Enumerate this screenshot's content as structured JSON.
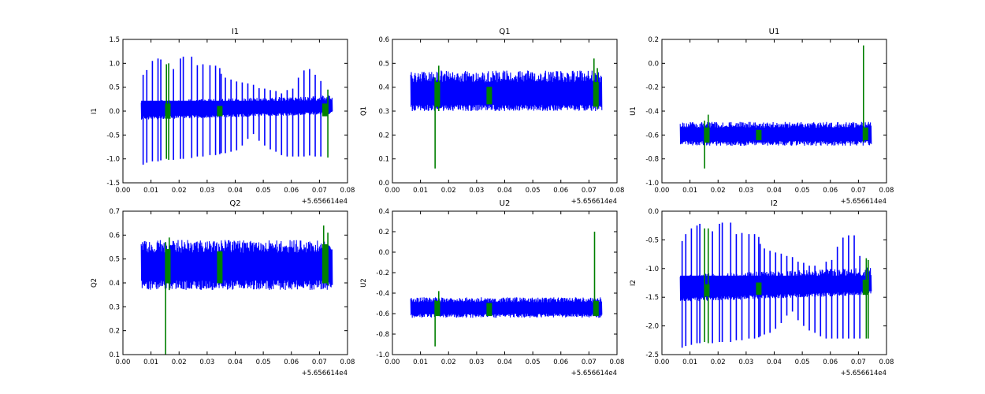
{
  "chart_data": [
    {
      "type": "line",
      "title": "I1",
      "xlabel": "",
      "ylabel": "I1",
      "xlim": [
        0.0,
        0.08
      ],
      "ylim": [
        -1.5,
        1.5
      ],
      "xticks": [
        "0.00",
        "0.01",
        "0.02",
        "0.03",
        "0.04",
        "0.05",
        "0.06",
        "0.07",
        "0.08"
      ],
      "yticks": [
        "-1.5",
        "-1.0",
        "-0.5",
        "0.0",
        "0.5",
        "1.0",
        "1.5"
      ],
      "x_offset_label": "+5.656614e4",
      "series": [
        {
          "color": "#0000ff",
          "x_range": [
            0.0065,
            0.0745
          ],
          "baseline": [
            -0.03,
            0.08
          ],
          "band": [
            -0.18,
            0.22
          ],
          "spikes": [
            [
              0.0072,
              0.76,
              -1.12
            ],
            [
              0.0085,
              0.86,
              -1.08
            ],
            [
              0.0105,
              1.05,
              -1.05
            ],
            [
              0.0125,
              1.1,
              -1.05
            ],
            [
              0.0135,
              1.08,
              -1.03
            ],
            [
              0.018,
              0.88,
              -1.02
            ],
            [
              0.0205,
              1.1,
              -1.0
            ],
            [
              0.0215,
              1.14,
              -1.0
            ],
            [
              0.0245,
              1.14,
              -0.98
            ],
            [
              0.0265,
              0.96,
              -0.95
            ],
            [
              0.0285,
              0.98,
              -0.95
            ],
            [
              0.031,
              0.96,
              -0.92
            ],
            [
              0.033,
              0.95,
              -0.92
            ],
            [
              0.0345,
              0.9,
              -0.9
            ],
            [
              0.035,
              0.78,
              -0.88
            ],
            [
              0.0365,
              0.7,
              -0.88
            ],
            [
              0.0385,
              0.66,
              -0.85
            ],
            [
              0.0405,
              0.62,
              -0.82
            ],
            [
              0.0425,
              0.6,
              -0.72
            ],
            [
              0.0445,
              0.58,
              -0.58
            ],
            [
              0.0465,
              0.55,
              -0.48
            ],
            [
              0.0485,
              0.48,
              -0.62
            ],
            [
              0.0505,
              0.47,
              -0.72
            ],
            [
              0.0525,
              0.44,
              -0.8
            ],
            [
              0.0545,
              0.42,
              -0.85
            ],
            [
              0.0565,
              0.37,
              -0.92
            ],
            [
              0.0585,
              0.44,
              -0.95
            ],
            [
              0.0605,
              0.47,
              -0.95
            ],
            [
              0.0625,
              0.7,
              -0.95
            ],
            [
              0.0645,
              0.85,
              -0.95
            ],
            [
              0.0665,
              0.88,
              -0.93
            ],
            [
              0.0685,
              0.76,
              -0.95
            ],
            [
              0.0705,
              0.63,
              -0.95
            ]
          ]
        },
        {
          "color": "#008000",
          "clusters": [
            [
              0.016,
              -0.15,
              0.15
            ],
            [
              0.0345,
              -0.1,
              0.1
            ],
            [
              0.072,
              -0.1,
              0.15
            ]
          ],
          "spikes": [
            [
              0.0155,
              0.98,
              -1.0
            ],
            [
              0.0163,
              1.0,
              -1.02
            ],
            [
              0.073,
              0.45,
              -0.97
            ]
          ]
        }
      ]
    },
    {
      "type": "line",
      "title": "Q1",
      "xlabel": "",
      "ylabel": "Q1",
      "xlim": [
        0.0,
        0.08
      ],
      "ylim": [
        0.0,
        0.6
      ],
      "xticks": [
        "0.00",
        "0.01",
        "0.02",
        "0.03",
        "0.04",
        "0.05",
        "0.06",
        "0.07",
        "0.08"
      ],
      "yticks": [
        "0.0",
        "0.1",
        "0.2",
        "0.3",
        "0.4",
        "0.5",
        "0.6"
      ],
      "x_offset_label": "+5.656614e4",
      "series": [
        {
          "color": "#0000ff",
          "x_range": [
            0.0065,
            0.0745
          ],
          "baseline": [
            0.36,
            0.36
          ],
          "band": [
            0.3,
            0.47
          ],
          "spikes": []
        },
        {
          "color": "#008000",
          "clusters": [
            [
              0.016,
              0.32,
              0.42
            ],
            [
              0.0345,
              0.33,
              0.4
            ],
            [
              0.0725,
              0.32,
              0.42
            ]
          ],
          "spikes": [
            [
              0.0152,
              0.44,
              0.06
            ],
            [
              0.0165,
              0.49,
              0.3
            ],
            [
              0.0718,
              0.52,
              0.33
            ],
            [
              0.073,
              0.48,
              0.31
            ]
          ]
        }
      ]
    },
    {
      "type": "line",
      "title": "U1",
      "xlabel": "",
      "ylabel": "U1",
      "xlim": [
        0.0,
        0.08
      ],
      "ylim": [
        -1.0,
        0.2
      ],
      "xticks": [
        "0.00",
        "0.01",
        "0.02",
        "0.03",
        "0.04",
        "0.05",
        "0.06",
        "0.07",
        "0.08"
      ],
      "yticks": [
        "-1.0",
        "-0.8",
        "-0.6",
        "-0.4",
        "-0.2",
        "0.0",
        "0.2"
      ],
      "x_offset_label": "+5.656614e4",
      "series": [
        {
          "color": "#0000ff",
          "x_range": [
            0.0065,
            0.0745
          ],
          "baseline": [
            -0.6,
            -0.6
          ],
          "band": [
            -0.69,
            -0.49
          ],
          "spikes": []
        },
        {
          "color": "#008000",
          "clusters": [
            [
              0.016,
              -0.66,
              -0.54
            ],
            [
              0.0345,
              -0.64,
              -0.56
            ],
            [
              0.0725,
              -0.64,
              -0.54
            ]
          ],
          "spikes": [
            [
              0.0152,
              -0.48,
              -0.88
            ],
            [
              0.0165,
              -0.43,
              -0.66
            ],
            [
              0.0718,
              0.15,
              -0.66
            ]
          ]
        }
      ]
    },
    {
      "type": "line",
      "title": "Q2",
      "xlabel": "",
      "ylabel": "Q2",
      "xlim": [
        0.0,
        0.08
      ],
      "ylim": [
        0.1,
        0.7
      ],
      "xticks": [
        "0.00",
        "0.01",
        "0.02",
        "0.03",
        "0.04",
        "0.05",
        "0.06",
        "0.07",
        "0.08"
      ],
      "yticks": [
        "0.1",
        "0.2",
        "0.3",
        "0.4",
        "0.5",
        "0.6",
        "0.7"
      ],
      "x_offset_label": "+5.656614e4",
      "series": [
        {
          "color": "#0000ff",
          "x_range": [
            0.0065,
            0.0745
          ],
          "baseline": [
            0.46,
            0.46
          ],
          "band": [
            0.37,
            0.58
          ],
          "spikes": []
        },
        {
          "color": "#008000",
          "clusters": [
            [
              0.016,
              0.4,
              0.54
            ],
            [
              0.0345,
              0.4,
              0.53
            ],
            [
              0.072,
              0.4,
              0.56
            ]
          ],
          "spikes": [
            [
              0.0152,
              0.57,
              0.1
            ],
            [
              0.0165,
              0.59,
              0.37
            ],
            [
              0.0715,
              0.64,
              0.4
            ],
            [
              0.073,
              0.61,
              0.39
            ]
          ]
        }
      ]
    },
    {
      "type": "line",
      "title": "U2",
      "xlabel": "",
      "ylabel": "U2",
      "xlim": [
        0.0,
        0.08
      ],
      "ylim": [
        -1.0,
        0.4
      ],
      "xticks": [
        "0.00",
        "0.01",
        "0.02",
        "0.03",
        "0.04",
        "0.05",
        "0.06",
        "0.07",
        "0.08"
      ],
      "yticks": [
        "-1.0",
        "-0.8",
        "-0.6",
        "-0.4",
        "-0.2",
        "0.0",
        "0.2",
        "0.4"
      ],
      "x_offset_label": "+5.656614e4",
      "series": [
        {
          "color": "#0000ff",
          "x_range": [
            0.0065,
            0.0745
          ],
          "baseline": [
            -0.55,
            -0.55
          ],
          "band": [
            -0.64,
            -0.44
          ],
          "spikes": []
        },
        {
          "color": "#008000",
          "clusters": [
            [
              0.016,
              -0.62,
              -0.48
            ],
            [
              0.0345,
              -0.62,
              -0.5
            ],
            [
              0.0725,
              -0.62,
              -0.48
            ]
          ],
          "spikes": [
            [
              0.0152,
              -0.47,
              -0.92
            ],
            [
              0.0165,
              -0.38,
              -0.62
            ],
            [
              0.072,
              0.2,
              -0.62
            ]
          ]
        }
      ]
    },
    {
      "type": "line",
      "title": "I2",
      "xlabel": "",
      "ylabel": "I2",
      "xlim": [
        0.0,
        0.08
      ],
      "ylim": [
        -2.5,
        0.0
      ],
      "xticks": [
        "0.00",
        "0.01",
        "0.02",
        "0.03",
        "0.04",
        "0.05",
        "0.06",
        "0.07",
        "0.08"
      ],
      "yticks": [
        "-2.5",
        "-2.0",
        "-1.5",
        "-1.0",
        "-0.5",
        "0.0"
      ],
      "x_offset_label": "+5.656614e4",
      "series": [
        {
          "color": "#0000ff",
          "x_range": [
            0.0065,
            0.0745
          ],
          "baseline": [
            -1.42,
            -1.3
          ],
          "band": [
            -1.58,
            -1.1
          ],
          "spikes": [
            [
              0.0072,
              -0.52,
              -2.38
            ],
            [
              0.0085,
              -0.4,
              -2.35
            ],
            [
              0.0105,
              -0.3,
              -2.33
            ],
            [
              0.0125,
              -0.25,
              -2.3
            ],
            [
              0.0135,
              -0.22,
              -2.3
            ],
            [
              0.018,
              -0.35,
              -2.3
            ],
            [
              0.0205,
              -0.22,
              -2.28
            ],
            [
              0.0215,
              -0.2,
              -2.28
            ],
            [
              0.0245,
              -0.2,
              -2.28
            ],
            [
              0.0265,
              -0.4,
              -2.25
            ],
            [
              0.0285,
              -0.38,
              -2.25
            ],
            [
              0.031,
              -0.4,
              -2.22
            ],
            [
              0.033,
              -0.4,
              -2.22
            ],
            [
              0.0345,
              -0.45,
              -2.2
            ],
            [
              0.035,
              -0.57,
              -2.18
            ],
            [
              0.0365,
              -0.65,
              -2.15
            ],
            [
              0.0385,
              -0.69,
              -2.12
            ],
            [
              0.0405,
              -0.72,
              -2.05
            ],
            [
              0.0425,
              -0.74,
              -1.95
            ],
            [
              0.0445,
              -0.78,
              -1.82
            ],
            [
              0.0465,
              -0.8,
              -1.75
            ],
            [
              0.0485,
              -0.88,
              -1.9
            ],
            [
              0.0505,
              -0.9,
              -2.0
            ],
            [
              0.0525,
              -0.95,
              -2.08
            ],
            [
              0.0545,
              -0.95,
              -2.12
            ],
            [
              0.0565,
              -1.05,
              -2.18
            ],
            [
              0.0585,
              -0.88,
              -2.22
            ],
            [
              0.0605,
              -0.85,
              -2.22
            ],
            [
              0.0625,
              -0.62,
              -2.22
            ],
            [
              0.0645,
              -0.46,
              -2.22
            ],
            [
              0.0665,
              -0.42,
              -2.22
            ],
            [
              0.0685,
              -0.42,
              -2.22
            ],
            [
              0.0705,
              -0.78,
              -2.22
            ]
          ]
        },
        {
          "color": "#008000",
          "clusters": [
            [
              0.016,
              -1.48,
              -1.28
            ],
            [
              0.0345,
              -1.45,
              -1.25
            ],
            [
              0.0725,
              -1.45,
              -1.2
            ]
          ],
          "spikes": [
            [
              0.0152,
              -0.3,
              -2.28
            ],
            [
              0.0165,
              -0.3,
              -2.3
            ],
            [
              0.0728,
              -0.82,
              -2.22
            ],
            [
              0.0735,
              -0.85,
              -2.22
            ]
          ]
        }
      ]
    }
  ]
}
